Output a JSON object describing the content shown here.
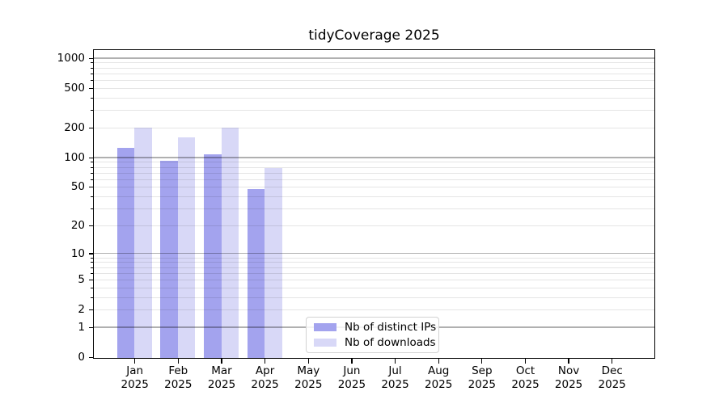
{
  "chart_data": {
    "type": "bar",
    "title": "tidyCoverage 2025",
    "categories": [
      "Jan",
      "Feb",
      "Mar",
      "Apr",
      "May",
      "Jun",
      "Jul",
      "Aug",
      "Sep",
      "Oct",
      "Nov",
      "Dec"
    ],
    "category_year": "2025",
    "series": [
      {
        "name": "Nb of distinct IPs",
        "color": "#a3a3ee",
        "values": [
          127,
          94,
          110,
          48,
          null,
          null,
          null,
          null,
          null,
          null,
          null,
          null
        ]
      },
      {
        "name": "Nb of downloads",
        "color": "#d8d8f7",
        "values": [
          205,
          162,
          205,
          80,
          null,
          null,
          null,
          null,
          null,
          null,
          null,
          null
        ]
      }
    ],
    "yscale": "log1p",
    "ylim": [
      0,
      1200
    ],
    "yticks": [
      0,
      1,
      2,
      5,
      10,
      20,
      50,
      100,
      200,
      500,
      1000
    ],
    "major_decades": [
      1,
      10,
      100,
      1000
    ],
    "minor_ticks": [
      3,
      4,
      6,
      7,
      8,
      9,
      30,
      40,
      60,
      70,
      80,
      90,
      300,
      400,
      600,
      700,
      800,
      900
    ],
    "grid": "both",
    "legend_position": "lower center",
    "colors": {
      "grid_major": "#b0b0b0",
      "grid_minor": "#e6e6e6",
      "axis": "#000000",
      "background": "#ffffff"
    }
  }
}
